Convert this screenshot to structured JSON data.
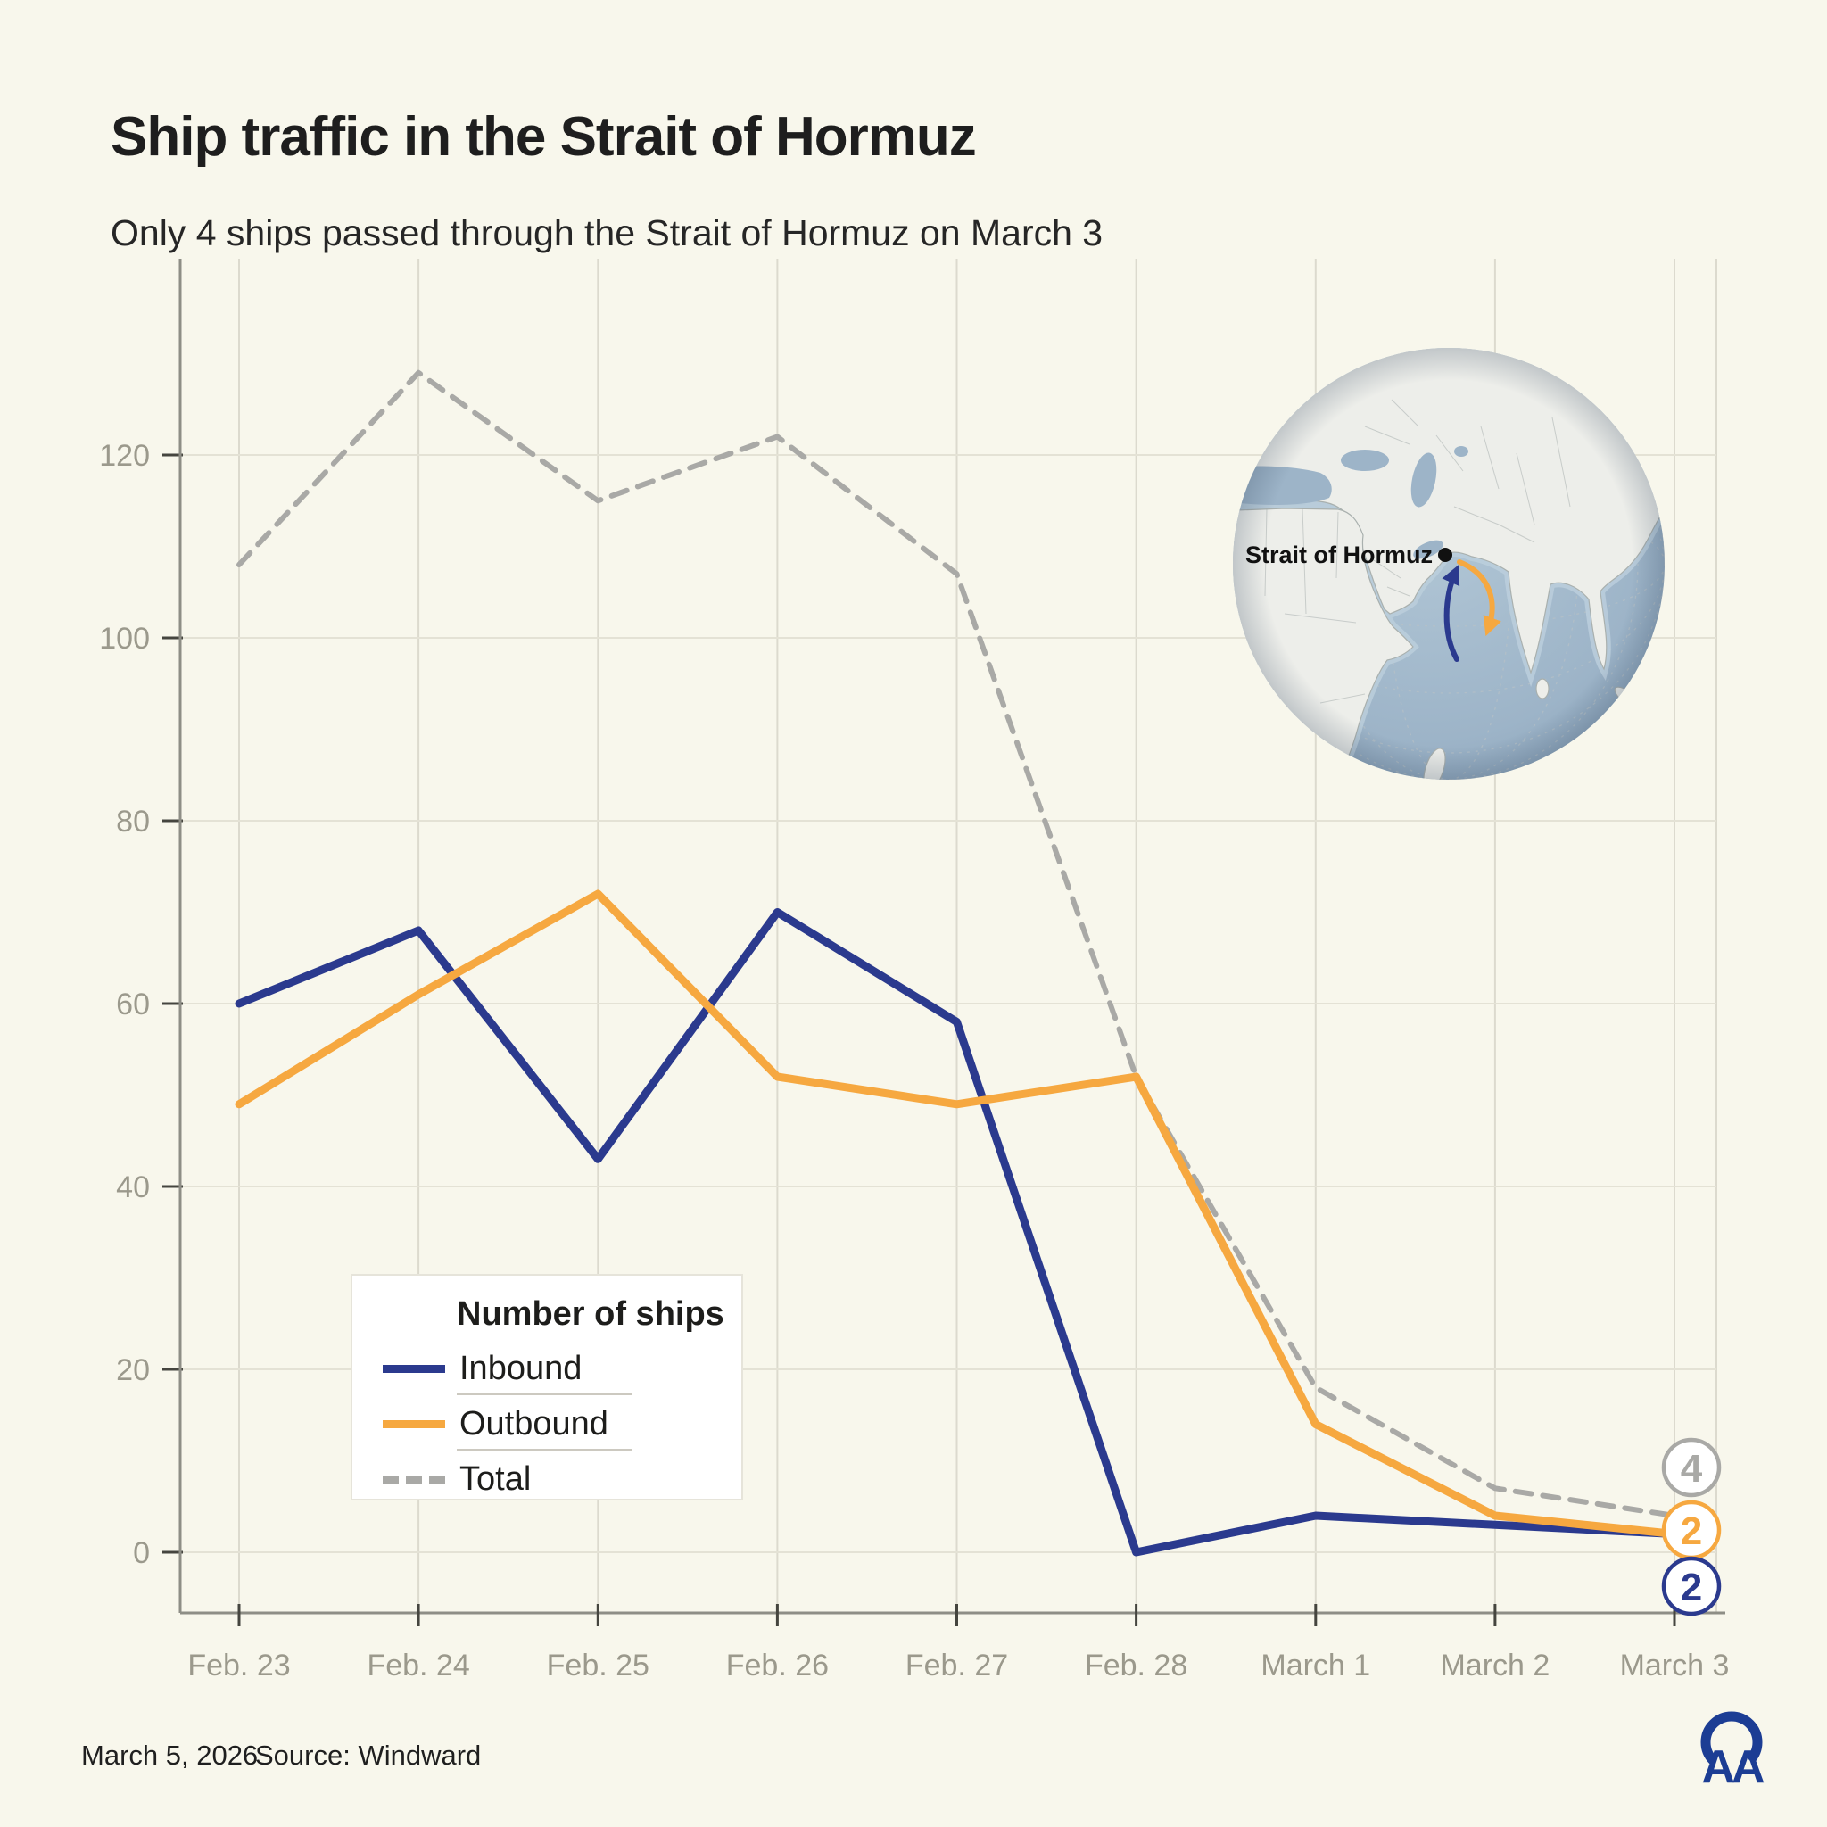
{
  "header": {
    "title": "Ship traffic in the Strait of Hormuz",
    "subtitle": "Only 4 ships passed through the Strait of Hormuz on March 3"
  },
  "chart_data": {
    "type": "line",
    "title": "Ship traffic in the Strait of Hormuz",
    "categories": [
      "Feb. 23",
      "Feb. 24",
      "Feb. 25",
      "Feb. 26",
      "Feb. 27",
      "Feb. 28",
      "March 1",
      "March 2",
      "March 3"
    ],
    "series": [
      {
        "name": "Inbound",
        "color": "#2b3a8e",
        "style": "solid",
        "values": [
          60,
          68,
          43,
          70,
          58,
          0,
          4,
          3,
          2
        ]
      },
      {
        "name": "Outbound",
        "color": "#f6a840",
        "style": "solid",
        "values": [
          49,
          61,
          72,
          52,
          49,
          52,
          14,
          4,
          2
        ]
      },
      {
        "name": "Total",
        "color": "#a9a9a6",
        "style": "dashed",
        "values": [
          108,
          129,
          115,
          122,
          107,
          52,
          18,
          7,
          4
        ]
      }
    ],
    "ylim": [
      0,
      135
    ],
    "yticks": [
      0,
      20,
      40,
      60,
      80,
      100,
      120
    ],
    "grid": true,
    "legend_title": "Number of ships",
    "legend_position": "inside-bottom-left",
    "end_labels": [
      {
        "series": "Total",
        "value": "4"
      },
      {
        "series": "Outbound",
        "value": "2"
      },
      {
        "series": "Inbound",
        "value": "2"
      }
    ]
  },
  "inset_map": {
    "label": "Strait of Hormuz",
    "marker": "black-dot",
    "inbound_arrow_color": "#2b3a8e",
    "outbound_arrow_color": "#f6a840",
    "ocean_color": "#9db4c8",
    "land_color": "#edeeea"
  },
  "footer": {
    "date": "March 5, 2026",
    "source": "Source: Windward"
  },
  "logo": {
    "text": "AA",
    "color": "#1c3d94"
  },
  "colors": {
    "background": "#f8f7ec",
    "gridline": "#e0ded2",
    "axis": "#8e8e86",
    "tick_label": "#9b998c"
  }
}
